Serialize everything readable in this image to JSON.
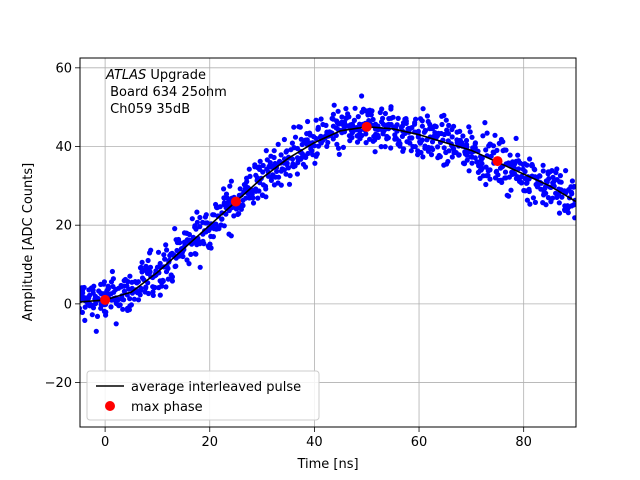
{
  "chart_data": {
    "type": "scatter",
    "xlabel": "Time [ns]",
    "ylabel": "Amplitude [ADC Counts]",
    "xlim": [
      -4.8,
      90
    ],
    "ylim": [
      -31.3,
      62.5
    ],
    "x_ticks": [
      0,
      20,
      40,
      60,
      80
    ],
    "y_ticks": [
      -20,
      0,
      20,
      40,
      60
    ],
    "x_tick_labels": [
      "0",
      "20",
      "40",
      "60",
      "80"
    ],
    "y_tick_labels": [
      "−20",
      "0",
      "20",
      "40",
      "60"
    ],
    "grid": true,
    "legend_position": "lower left",
    "annotation": {
      "line1_italic": "ATLAS",
      "line1_rest": " Upgrade",
      "line2": " Board 634 25ohm",
      "line3": " Ch059 35dB"
    },
    "series": [
      {
        "name": "average interleaved pulse",
        "kind": "line",
        "color": "#000000",
        "x": [
          -4.8,
          0,
          5,
          10,
          15,
          20,
          25,
          30,
          35,
          40,
          45,
          50,
          55,
          60,
          65,
          70,
          75,
          80,
          85,
          90
        ],
        "y": [
          0.5,
          1,
          3,
          8,
          14,
          20,
          26,
          32,
          37,
          41,
          44,
          45,
          44.5,
          43,
          41,
          39,
          36,
          33,
          30,
          26
        ]
      },
      {
        "name": "max phase",
        "kind": "points",
        "color": "#ff0000",
        "x": [
          0,
          25,
          50,
          75
        ],
        "y": [
          1,
          26,
          45,
          36.3
        ]
      },
      {
        "name": "",
        "kind": "scatter_cloud",
        "color": "#0000ff",
        "x_step": 0.5,
        "x_start": -4.8,
        "x_end": 90,
        "points_per_x": 5,
        "spread": 4
      }
    ]
  }
}
